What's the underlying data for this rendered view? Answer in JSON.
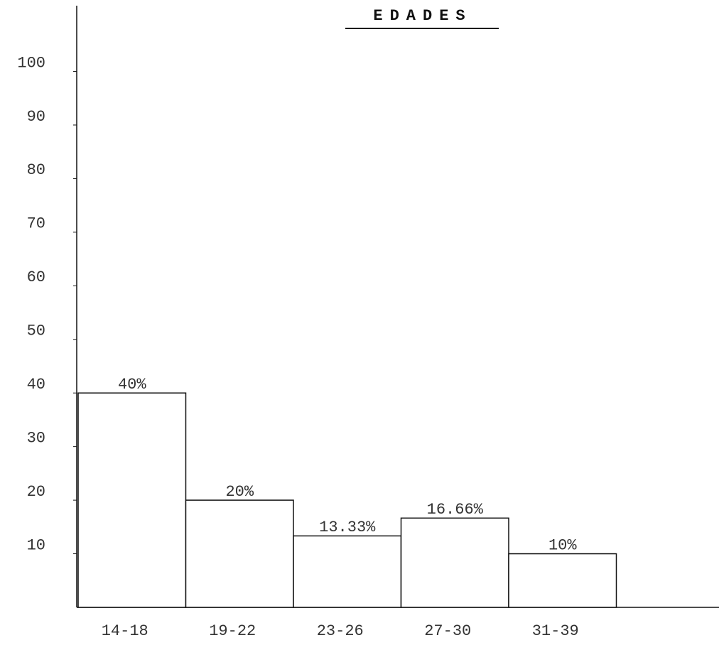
{
  "chart_data": {
    "type": "bar",
    "title": "EDADES",
    "categories": [
      "14-18",
      "19-22",
      "23-26",
      "27-30",
      "31-39"
    ],
    "values": [
      40,
      20,
      13.33,
      16.66,
      10
    ],
    "value_labels": [
      "40%",
      "20%",
      "13.33%",
      "16.66%",
      "10%"
    ],
    "color": "#ffffff",
    "ylim": [
      0,
      112
    ],
    "yticks": [
      10,
      20,
      30,
      40,
      50,
      60,
      70,
      80,
      90,
      100
    ],
    "grid": false
  }
}
